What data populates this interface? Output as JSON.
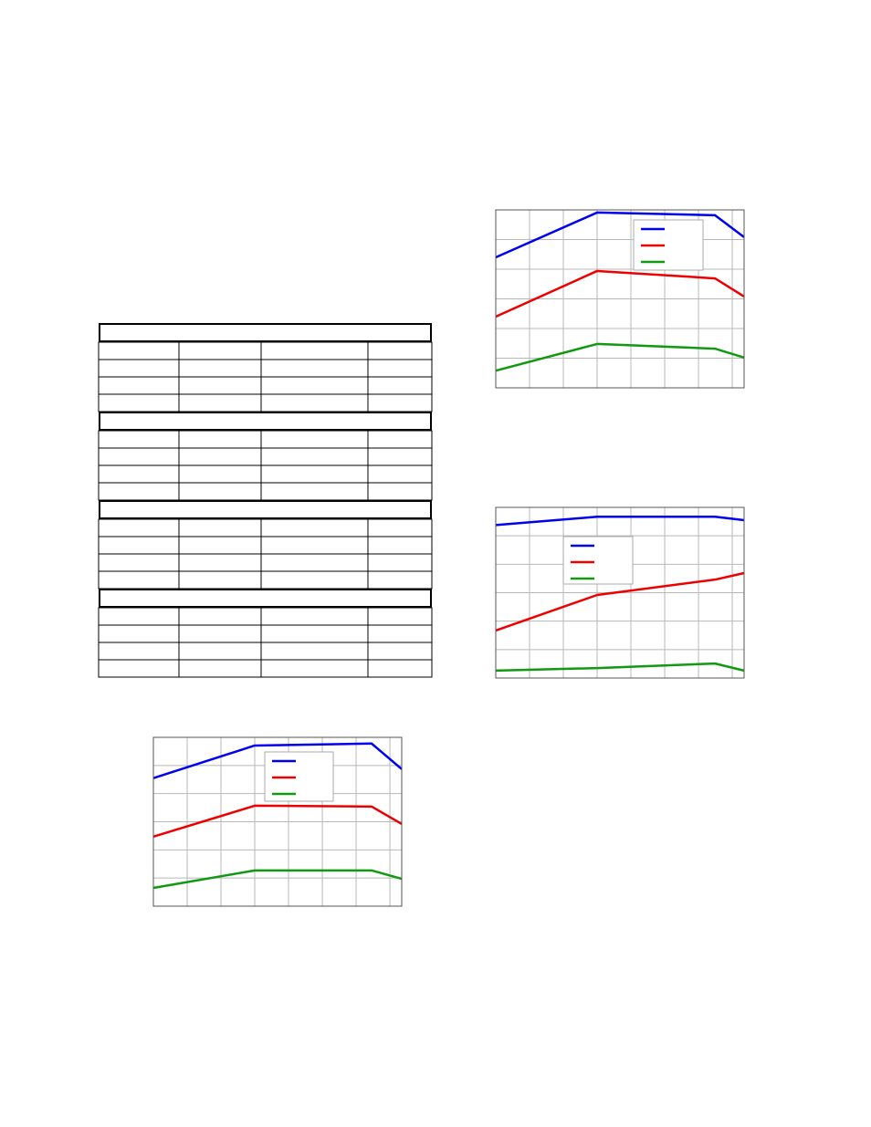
{
  "chart_data": [
    {
      "type": "line",
      "x": [
        0,
        3,
        6.49,
        7.35
      ],
      "xlim": [
        0,
        7.35
      ],
      "xticks": [
        1,
        2,
        3,
        4,
        5,
        6,
        7
      ],
      "ylim": [
        0,
        6
      ],
      "yticks": [
        1,
        2,
        3,
        4,
        5
      ],
      "grid": true,
      "series": [
        {
          "color": "#0000ee",
          "values": [
            4.4,
            5.91,
            5.82,
            5.08
          ]
        },
        {
          "color": "#ee0000",
          "values": [
            2.4,
            3.94,
            3.69,
            3.08
          ]
        },
        {
          "color": "#119911",
          "values": [
            0.58,
            1.48,
            1.32,
            1.02
          ]
        }
      ]
    },
    {
      "type": "line",
      "x": [
        0,
        3,
        6.49,
        7.35
      ],
      "xlim": [
        0,
        7.35
      ],
      "xticks": [
        1,
        2,
        3,
        4,
        5,
        6,
        7
      ],
      "ylim": [
        0,
        6
      ],
      "yticks": [
        1,
        2,
        3,
        4,
        5
      ],
      "grid": true,
      "series": [
        {
          "color": "#0000ee",
          "values": [
            5.38,
            5.67,
            5.67,
            5.55
          ]
        },
        {
          "color": "#ee0000",
          "values": [
            1.67,
            2.92,
            3.46,
            3.69
          ]
        },
        {
          "color": "#119911",
          "values": [
            0.26,
            0.35,
            0.51,
            0.26
          ]
        }
      ]
    },
    {
      "type": "line",
      "x": [
        0,
        3,
        6.46,
        7.35
      ],
      "xlim": [
        0,
        7.35
      ],
      "xticks": [
        1,
        2,
        3,
        4,
        5,
        6,
        7
      ],
      "ylim": [
        0,
        6
      ],
      "yticks": [
        1,
        2,
        3,
        4,
        5
      ],
      "grid": true,
      "series": [
        {
          "color": "#0000ee",
          "values": [
            4.55,
            5.71,
            5.78,
            4.87
          ]
        },
        {
          "color": "#ee0000",
          "values": [
            2.47,
            3.57,
            3.54,
            2.92
          ]
        },
        {
          "color": "#119911",
          "values": [
            0.65,
            1.27,
            1.27,
            0.97
          ]
        }
      ]
    }
  ]
}
